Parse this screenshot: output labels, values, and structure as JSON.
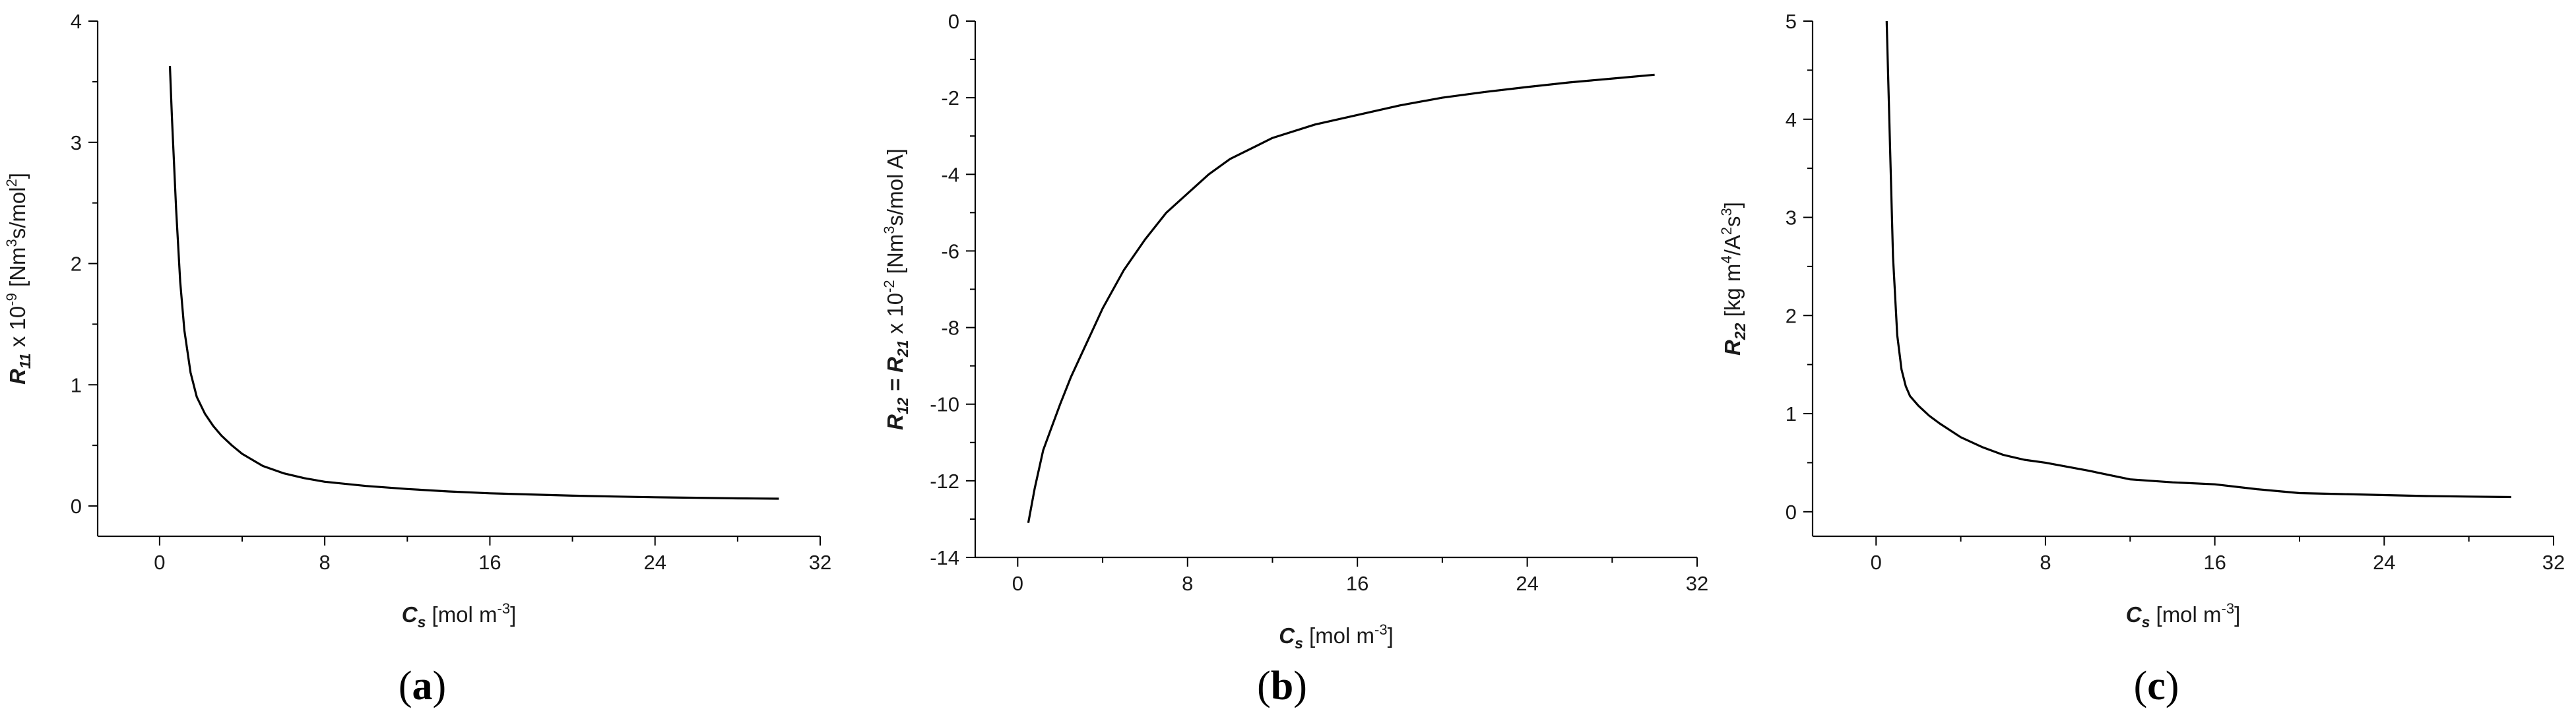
{
  "chart_data": [
    {
      "type": "line",
      "panel_label": "a",
      "xlabel": {
        "var": "C",
        "sub": "s",
        "unit_pre": " [mol m",
        "unit_sup": "-3",
        "unit_post": "]"
      },
      "ylabel": {
        "var": "R",
        "sub": "11",
        "mult_pre": " x 10",
        "mult_sup": "-9",
        "unit_pre": " [Nm",
        "unit_sup": "3",
        "unit_mid": "s/mol",
        "unit_sup2": "2",
        "unit_post": "]"
      },
      "xlim": [
        -3,
        32
      ],
      "ylim": [
        -0.25,
        4
      ],
      "xticks": [
        0,
        8,
        16,
        24,
        32
      ],
      "yticks": [
        0,
        1,
        2,
        3,
        4
      ],
      "minor_x": [
        4,
        12,
        20,
        28
      ],
      "minor_y": [
        0.5,
        1.5,
        2.5,
        3.5
      ],
      "x": [
        0.5,
        0.6,
        0.8,
        1.0,
        1.2,
        1.5,
        1.8,
        2.2,
        2.6,
        3.0,
        3.5,
        4.0,
        5.0,
        6.0,
        7.0,
        8.0,
        10,
        12,
        14,
        16,
        18,
        20,
        22,
        24,
        26,
        28,
        30
      ],
      "y": [
        3.63,
        3.2,
        2.45,
        1.85,
        1.45,
        1.1,
        0.9,
        0.76,
        0.66,
        0.58,
        0.5,
        0.43,
        0.33,
        0.27,
        0.23,
        0.2,
        0.165,
        0.14,
        0.12,
        0.105,
        0.095,
        0.085,
        0.078,
        0.072,
        0.068,
        0.063,
        0.06
      ]
    },
    {
      "type": "line",
      "panel_label": "b",
      "xlabel": {
        "var": "C",
        "sub": "s",
        "unit_pre": " [mol m",
        "unit_sup": "-3",
        "unit_post": "]"
      },
      "ylabel": {
        "var": "R",
        "sub": "12",
        "eq": " = ",
        "var2": "R",
        "sub2": "21",
        "mult_pre": " x 10",
        "mult_sup": "-2",
        "unit_pre": " [Nm",
        "unit_sup": "3",
        "unit_mid": "s/mol A",
        "unit_post": "]"
      },
      "xlim": [
        -2,
        32
      ],
      "ylim": [
        -14,
        0
      ],
      "xticks": [
        0,
        8,
        16,
        24,
        32
      ],
      "yticks": [
        0,
        -2,
        -4,
        -6,
        -8,
        -10,
        -12,
        -14
      ],
      "minor_x": [
        4,
        12,
        20,
        28
      ],
      "minor_y": [
        -1,
        -3,
        -5,
        -7,
        -9,
        -11,
        -13
      ],
      "x": [
        0.5,
        0.8,
        1.2,
        1.6,
        2.0,
        2.5,
        3.0,
        3.5,
        4.0,
        5.0,
        6.0,
        7.0,
        8.0,
        9.0,
        10,
        12,
        14,
        16,
        18,
        20,
        22,
        24,
        26,
        28,
        30
      ],
      "y": [
        -13.1,
        -12.2,
        -11.2,
        -10.6,
        -10.0,
        -9.3,
        -8.7,
        -8.1,
        -7.5,
        -6.5,
        -5.7,
        -5.0,
        -4.5,
        -4.0,
        -3.6,
        -3.05,
        -2.7,
        -2.45,
        -2.2,
        -2.0,
        -1.85,
        -1.72,
        -1.6,
        -1.5,
        -1.4
      ]
    },
    {
      "type": "line",
      "panel_label": "c",
      "xlabel": {
        "var": "C",
        "sub": "s",
        "unit_pre": " [mol m",
        "unit_sup": "-3",
        "unit_post": "]"
      },
      "ylabel": {
        "var": "R",
        "sub": "22",
        "unit_pre": " [kg m",
        "unit_sup": "4",
        "unit_mid": "/A",
        "unit_sup2": "2",
        "unit_mid2": "s",
        "unit_sup3": "3",
        "unit_post": "]"
      },
      "xlim": [
        -3,
        32
      ],
      "ylim": [
        -0.25,
        5
      ],
      "xticks": [
        0,
        8,
        16,
        24,
        32
      ],
      "yticks": [
        0,
        1,
        2,
        3,
        4,
        5
      ],
      "minor_x": [
        4,
        12,
        20,
        28
      ],
      "minor_y": [
        0.5,
        1.5,
        2.5,
        3.5,
        4.5
      ],
      "x": [
        0.5,
        0.6,
        0.7,
        0.8,
        1.0,
        1.2,
        1.4,
        1.6,
        2.0,
        2.5,
        3.0,
        4.0,
        5.0,
        6.0,
        7.0,
        8.0,
        10,
        12,
        14,
        16,
        18,
        20,
        22,
        24,
        26,
        28,
        30
      ],
      "y": [
        5.0,
        4.2,
        3.4,
        2.6,
        1.8,
        1.45,
        1.28,
        1.18,
        1.08,
        0.98,
        0.9,
        0.76,
        0.66,
        0.58,
        0.53,
        0.5,
        0.42,
        0.33,
        0.3,
        0.28,
        0.23,
        0.19,
        0.18,
        0.17,
        0.16,
        0.155,
        0.15
      ]
    }
  ]
}
